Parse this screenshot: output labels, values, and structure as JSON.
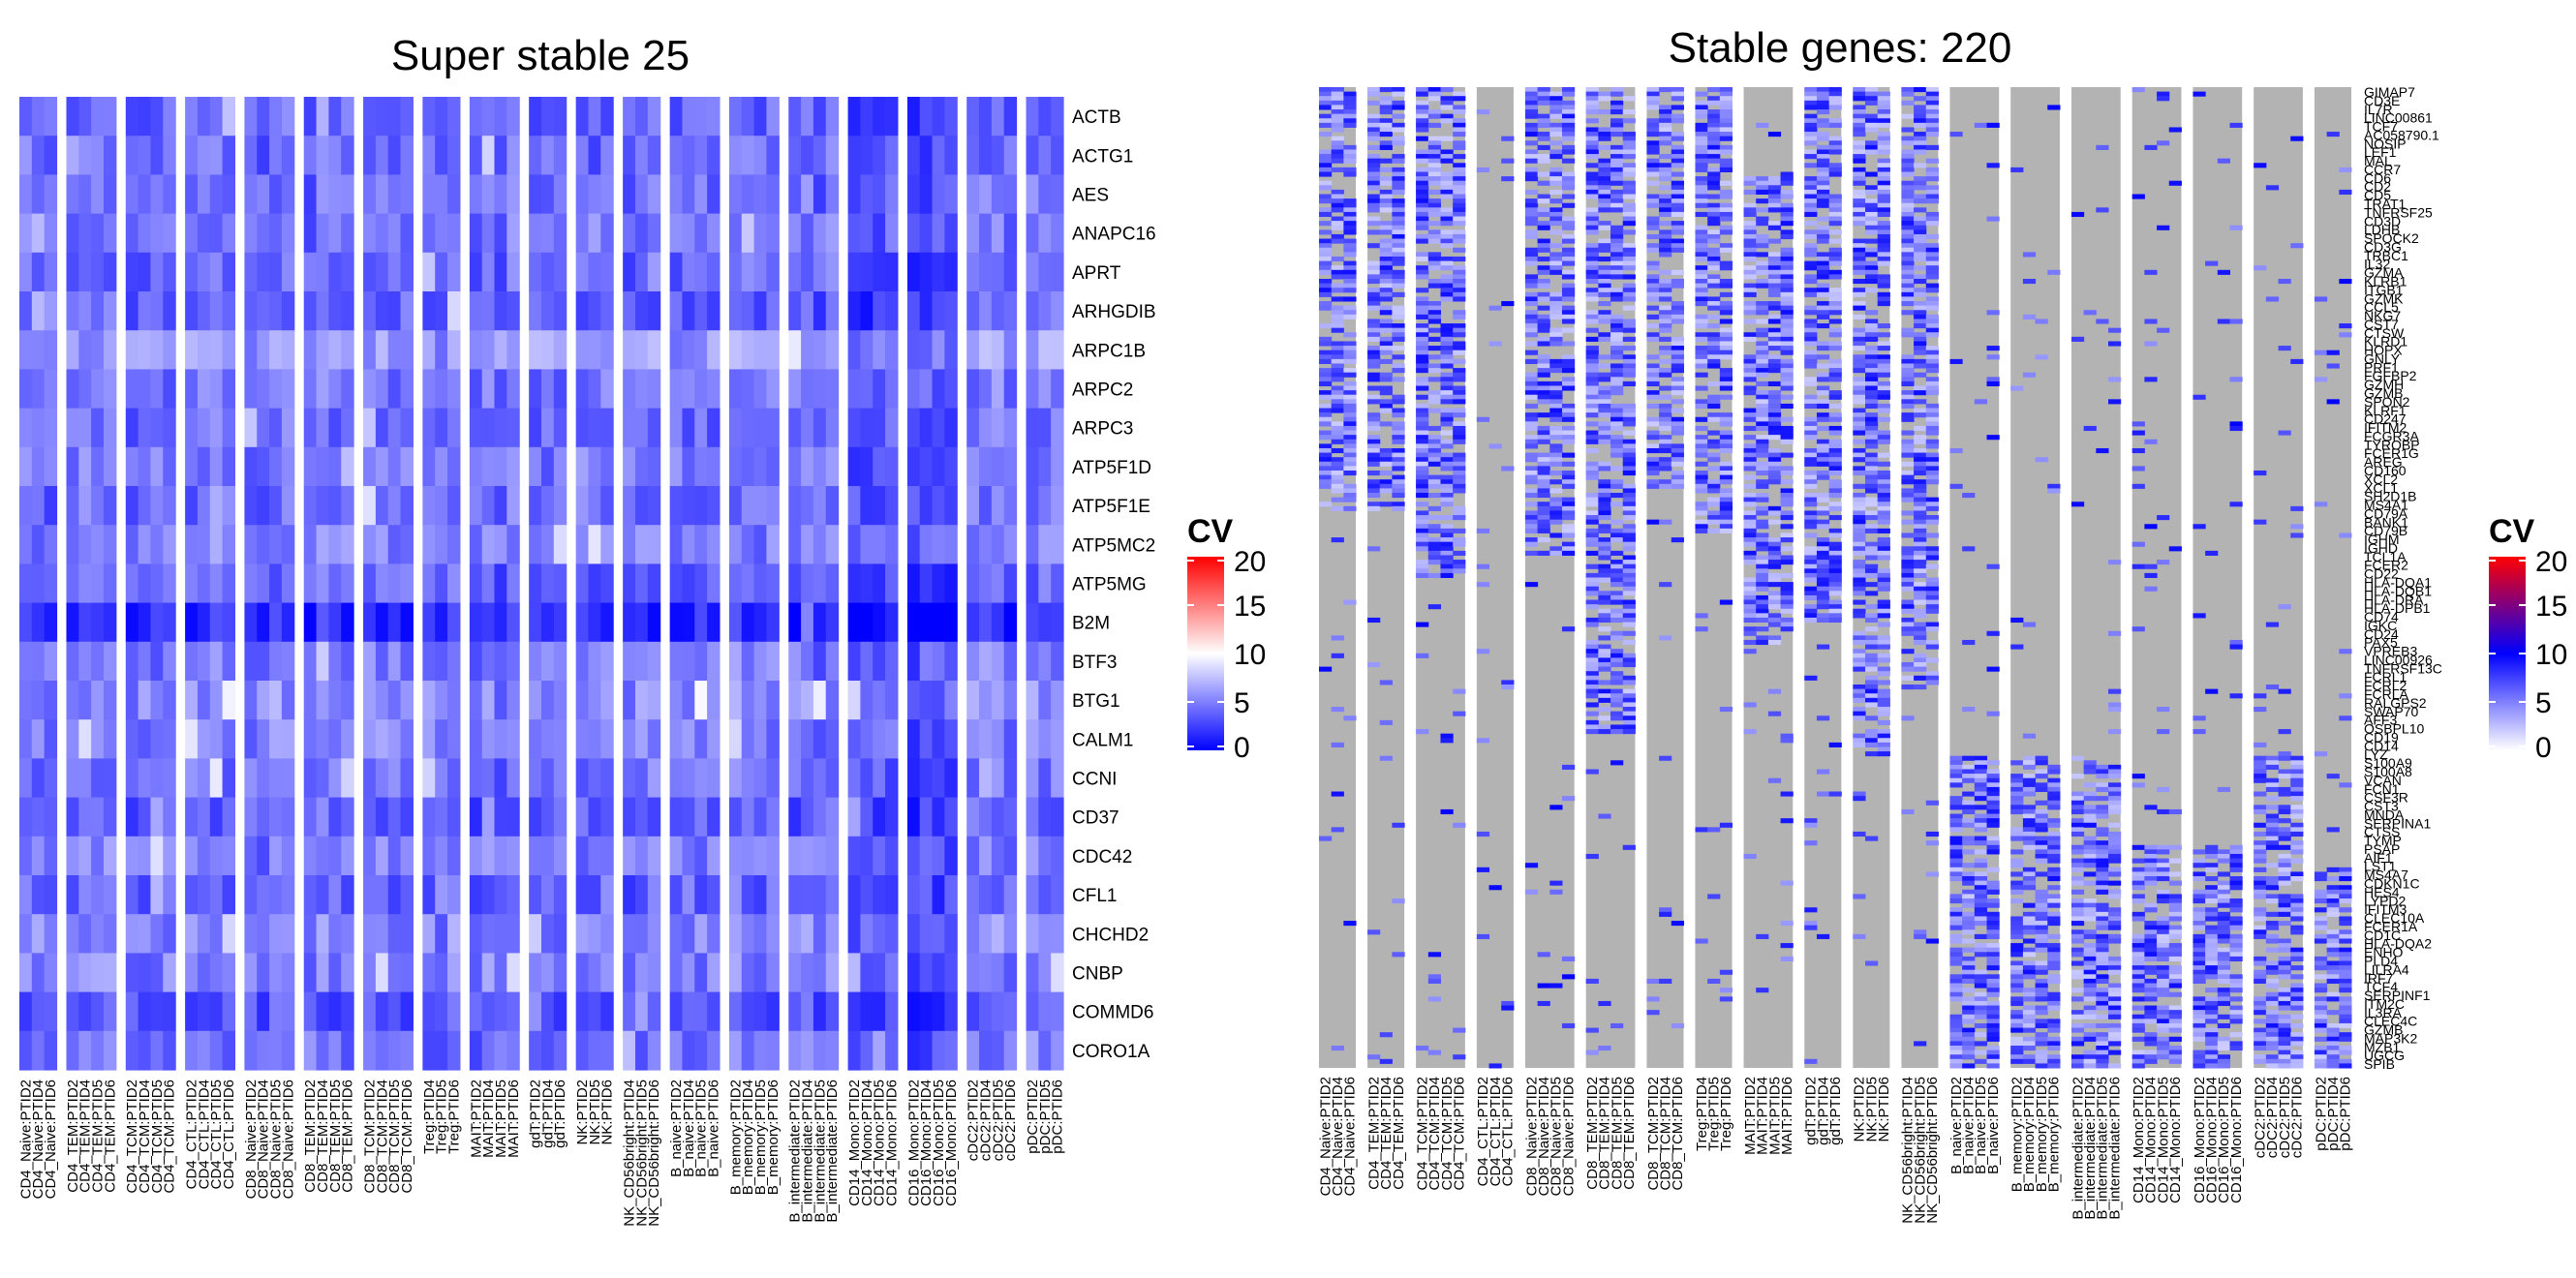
{
  "colors": {
    "left_scale": [
      "#0000ff",
      "#ffffff",
      "#ff0000"
    ],
    "right_scale": [
      "#ffffff",
      "#0000ff",
      "#ff0000"
    ],
    "missing": "#b3b3b3"
  },
  "chart_data": [
    {
      "type": "heatmap",
      "title": "Super stable 25",
      "legend": {
        "title": "CV",
        "ticks": [
          "20",
          "15",
          "10",
          "5",
          "0"
        ],
        "range": [
          0,
          20
        ],
        "midpoint": 10,
        "position": "right"
      },
      "rows": [
        "ACTB",
        "ACTG1",
        "AES",
        "ANAPC16",
        "APRT",
        "ARHGDIB",
        "ARPC1B",
        "ARPC2",
        "ARPC3",
        "ATP5F1D",
        "ATP5F1E",
        "ATP5MC2",
        "ATP5MG",
        "B2M",
        "BTF3",
        "BTG1",
        "CALM1",
        "CCNI",
        "CD37",
        "CDC42",
        "CFL1",
        "CHCHD2",
        "CNBP",
        "COMMD6",
        "CORO1A"
      ],
      "column_groups": [
        {
          "name": "CD4_Naive",
          "samples": [
            "CD4_Naive:PTID2",
            "CD4_Naive:PTID4",
            "CD4_Naive:PTID6"
          ]
        },
        {
          "name": "CD4_TEM",
          "samples": [
            "CD4_TEM:PTID2",
            "CD4_TEM:PTID4",
            "CD4_TEM:PTID5",
            "CD4_TEM:PTID6"
          ]
        },
        {
          "name": "CD4_TCM",
          "samples": [
            "CD4_TCM:PTID2",
            "CD4_TCM:PTID4",
            "CD4_TCM:PTID5",
            "CD4_TCM:PTID6"
          ]
        },
        {
          "name": "CD4_CTL",
          "samples": [
            "CD4_CTL:PTID2",
            "CD4_CTL:PTID4",
            "CD4_CTL:PTID5",
            "CD4_CTL:PTID6"
          ]
        },
        {
          "name": "CD8_Naive",
          "samples": [
            "CD8_Naive:PTID2",
            "CD8_Naive:PTID4",
            "CD8_Naive:PTID5",
            "CD8_Naive:PTID6"
          ]
        },
        {
          "name": "CD8_TEM",
          "samples": [
            "CD8_TEM:PTID2",
            "CD8_TEM:PTID4",
            "CD8_TEM:PTID5",
            "CD8_TEM:PTID6"
          ]
        },
        {
          "name": "CD8_TCM",
          "samples": [
            "CD8_TCM:PTID2",
            "CD8_TCM:PTID4",
            "CD8_TCM:PTID5",
            "CD8_TCM:PTID6"
          ]
        },
        {
          "name": "Treg",
          "samples": [
            "Treg:PTID4",
            "Treg:PTID5",
            "Treg:PTID6"
          ]
        },
        {
          "name": "MAIT",
          "samples": [
            "MAIT:PTID2",
            "MAIT:PTID4",
            "MAIT:PTID5",
            "MAIT:PTID6"
          ]
        },
        {
          "name": "gdT",
          "samples": [
            "gdT:PTID2",
            "gdT:PTID4",
            "gdT:PTID6"
          ]
        },
        {
          "name": "NK",
          "samples": [
            "NK:PTID2",
            "NK:PTID5",
            "NK:PTID6"
          ]
        },
        {
          "name": "NK_CD56bright",
          "samples": [
            "NK_CD56bright:PTID4",
            "NK_CD56bright:PTID5",
            "NK_CD56bright:PTID6"
          ]
        },
        {
          "name": "B_naive",
          "samples": [
            "B_naive:PTID2",
            "B_naive:PTID4",
            "B_naive:PTID5",
            "B_naive:PTID6"
          ]
        },
        {
          "name": "B_memory",
          "samples": [
            "B_memory:PTID2",
            "B_memory:PTID4",
            "B_memory:PTID5",
            "B_memory:PTID6"
          ]
        },
        {
          "name": "B_intermediate",
          "samples": [
            "B_intermediate:PTID2",
            "B_intermediate:PTID4",
            "B_intermediate:PTID5",
            "B_intermediate:PTID6"
          ]
        },
        {
          "name": "CD14_Mono",
          "samples": [
            "CD14_Mono:PTID2",
            "CD14_Mono:PTID4",
            "CD14_Mono:PTID5",
            "CD14_Mono:PTID6"
          ]
        },
        {
          "name": "CD16_Mono",
          "samples": [
            "CD16_Mono:PTID2",
            "CD16_Mono:PTID4",
            "CD16_Mono:PTID5",
            "CD16_Mono:PTID6"
          ]
        },
        {
          "name": "cDC2",
          "samples": [
            "cDC2:PTID2",
            "cDC2:PTID4",
            "cDC2:PTID5",
            "cDC2:PTID6"
          ]
        },
        {
          "name": "pDC",
          "samples": [
            "pDC:PTID2",
            "pDC:PTID5",
            "pDC:PTID6"
          ]
        }
      ],
      "row_means": [
        4.0,
        4.2,
        4.4,
        4.6,
        4.2,
        3.8,
        6.0,
        4.6,
        4.2,
        4.8,
        4.4,
        5.0,
        4.0,
        1.6,
        4.8,
        5.4,
        4.8,
        4.6,
        3.6,
        4.8,
        4.0,
        5.2,
        5.0,
        3.2,
        4.4
      ]
    },
    {
      "type": "heatmap",
      "title": "Stable genes: 220",
      "legend": {
        "title": "CV",
        "ticks": [
          "20",
          "15",
          "10",
          "5",
          "0"
        ],
        "range": [
          0,
          20
        ],
        "midpoint": 10,
        "position": "right"
      },
      "row_count": 220,
      "rows_visible_labels": [
        "GIMAP7",
        "CD3E",
        "IL7R",
        "LINC00861",
        "TCF7",
        "AC058790.1",
        "NOSIP",
        "LEF1",
        "MAL",
        "CCR7",
        "CD6",
        "CD2",
        "CD5",
        "TRAT1",
        "TNFRSF25",
        "CD3D",
        "LDHB",
        "SPOCK2",
        "CD3G",
        "TRBC1",
        "IL32",
        "GZMA",
        "KLRB1",
        "ITGB1",
        "GZMK",
        "CCL5",
        "NKG7",
        "CST7",
        "CTSW",
        "KLRD1",
        "HOPX",
        "GNLY",
        "PRF1",
        "FGFBP2",
        "GZMH",
        "GZMB",
        "SPON2",
        "KLRF1",
        "CD247",
        "IFITM2",
        "FCGR3A",
        "TYROBP",
        "FCER1G",
        "AREG",
        "CD160",
        "XCL2",
        "XCL1",
        "SH2D1B",
        "MS4A1",
        "CD79A",
        "BANK1",
        "CD79B",
        "IGHM",
        "IGHD",
        "TCL1A",
        "FCER2",
        "CD22",
        "HLA-DQA1",
        "HLA-DQB1",
        "HLA-DRA",
        "HLA-DPB1",
        "CD74",
        "IGKC",
        "CD24",
        "PAX5",
        "VPREB3",
        "LINC00926",
        "TNFRSF13C",
        "FCRL1",
        "FCRL2",
        "FCRLA",
        "RALGPS2",
        "SWAP70",
        "AFF3",
        "OSBPL10",
        "CD19",
        "CD14",
        "LYZ",
        "S100A9",
        "S100A8",
        "VCAN",
        "FCN1",
        "CSF3R",
        "CST3",
        "MNDA",
        "SERPINA1",
        "CTSS",
        "TYMP",
        "PSAP",
        "AIF1",
        "LST1",
        "MS4A7",
        "CDKN1C",
        "HES4",
        "LYPD2",
        "IFITM3",
        "CLEC10A",
        "FCER1A",
        "CD1C",
        "HLA-DQA2",
        "ENHO",
        "PLD4",
        "LILRA4",
        "IRF7",
        "TCF4",
        "SERPINF1",
        "ITM2C",
        "IL3RA",
        "CLEC4C",
        "GZMB",
        "MAP3K2",
        "MZB1",
        "UGCG",
        "SPIB"
      ],
      "column_groups": [
        {
          "name": "CD4_Naive",
          "samples": [
            "CD4_Naive:PTID2",
            "CD4_Naive:PTID4",
            "CD4_Naive:PTID6"
          ]
        },
        {
          "name": "CD4_TEM",
          "samples": [
            "CD4_TEM:PTID2",
            "CD4_TEM:PTID4",
            "CD4_TEM:PTID6"
          ]
        },
        {
          "name": "CD4_TCM",
          "samples": [
            "CD4_TCM:PTID2",
            "CD4_TCM:PTID4",
            "CD4_TCM:PTID5",
            "CD4_TCM:PTID6"
          ]
        },
        {
          "name": "CD4_CTL",
          "samples": [
            "CD4_CTL:PTID2",
            "CD4_CTL:PTID4",
            "CD4_CTL:PTID6"
          ]
        },
        {
          "name": "CD8_Naive",
          "samples": [
            "CD8_Naive:PTID2",
            "CD8_Naive:PTID4",
            "CD8_Naive:PTID5",
            "CD8_Naive:PTID6"
          ]
        },
        {
          "name": "CD8_TEM",
          "samples": [
            "CD8_TEM:PTID2",
            "CD8_TEM:PTID4",
            "CD8_TEM:PTID5",
            "CD8_TEM:PTID6"
          ]
        },
        {
          "name": "CD8_TCM",
          "samples": [
            "CD8_TCM:PTID2",
            "CD8_TCM:PTID4",
            "CD8_TCM:PTID6"
          ]
        },
        {
          "name": "Treg",
          "samples": [
            "Treg:PTID4",
            "Treg:PTID5",
            "Treg:PTID6"
          ]
        },
        {
          "name": "MAIT",
          "samples": [
            "MAIT:PTID2",
            "MAIT:PTID4",
            "MAIT:PTID5",
            "MAIT:PTID6"
          ]
        },
        {
          "name": "gdT",
          "samples": [
            "gdT:PTID2",
            "gdT:PTID4",
            "gdT:PTID6"
          ]
        },
        {
          "name": "NK",
          "samples": [
            "NK:PTID2",
            "NK:PTID5",
            "NK:PTID6"
          ]
        },
        {
          "name": "NK_CD56bright",
          "samples": [
            "NK_CD56bright:PTID4",
            "NK_CD56bright:PTID5",
            "NK_CD56bright:PTID6"
          ]
        },
        {
          "name": "B_naive",
          "samples": [
            "B_naive:PTID2",
            "B_naive:PTID4",
            "B_naive:PTID5",
            "B_naive:PTID6"
          ]
        },
        {
          "name": "B_memory",
          "samples": [
            "B_memory:PTID2",
            "B_memory:PTID4",
            "B_memory:PTID5",
            "B_memory:PTID6"
          ]
        },
        {
          "name": "B_intermediate",
          "samples": [
            "B_intermediate:PTID2",
            "B_intermediate:PTID4",
            "B_intermediate:PTID5",
            "B_intermediate:PTID6"
          ]
        },
        {
          "name": "CD14_Mono",
          "samples": [
            "CD14_Mono:PTID2",
            "CD14_Mono:PTID4",
            "CD14_Mono:PTID5",
            "CD14_Mono:PTID6"
          ]
        },
        {
          "name": "CD16_Mono",
          "samples": [
            "CD16_Mono:PTID2",
            "CD16_Mono:PTID4",
            "CD16_Mono:PTID5",
            "CD16_Mono:PTID6"
          ]
        },
        {
          "name": "cDC2",
          "samples": [
            "cDC2:PTID2",
            "cDC2:PTID4",
            "cDC2:PTID5",
            "cDC2:PTID6"
          ]
        },
        {
          "name": "pDC",
          "samples": [
            "pDC:PTID2",
            "pDC:PTID4",
            "pDC:PTID6"
          ]
        }
      ],
      "stable_row_ranges": [
        [
          [
            0,
            95
          ]
        ],
        [
          [
            0,
            95
          ]
        ],
        [
          [
            0,
            110
          ]
        ],
        [
          []
        ],
        [
          [
            0,
            105
          ]
        ],
        [
          [
            0,
            145
          ]
        ],
        [
          [
            0,
            90
          ]
        ],
        [
          [
            0,
            100
          ]
        ],
        [
          [
            20,
            125
          ]
        ],
        [
          [
            0,
            120
          ]
        ],
        [
          [
            0,
            150
          ]
        ],
        [
          [
            0,
            135
          ]
        ],
        [
          [
            150,
            220
          ]
        ],
        [
          [
            150,
            220
          ]
        ],
        [
          [
            150,
            220
          ]
        ],
        [
          [
            170,
            220
          ]
        ],
        [
          [
            170,
            220
          ]
        ],
        [
          [
            150,
            220
          ]
        ],
        [
          [
            175,
            220
          ]
        ]
      ]
    }
  ]
}
